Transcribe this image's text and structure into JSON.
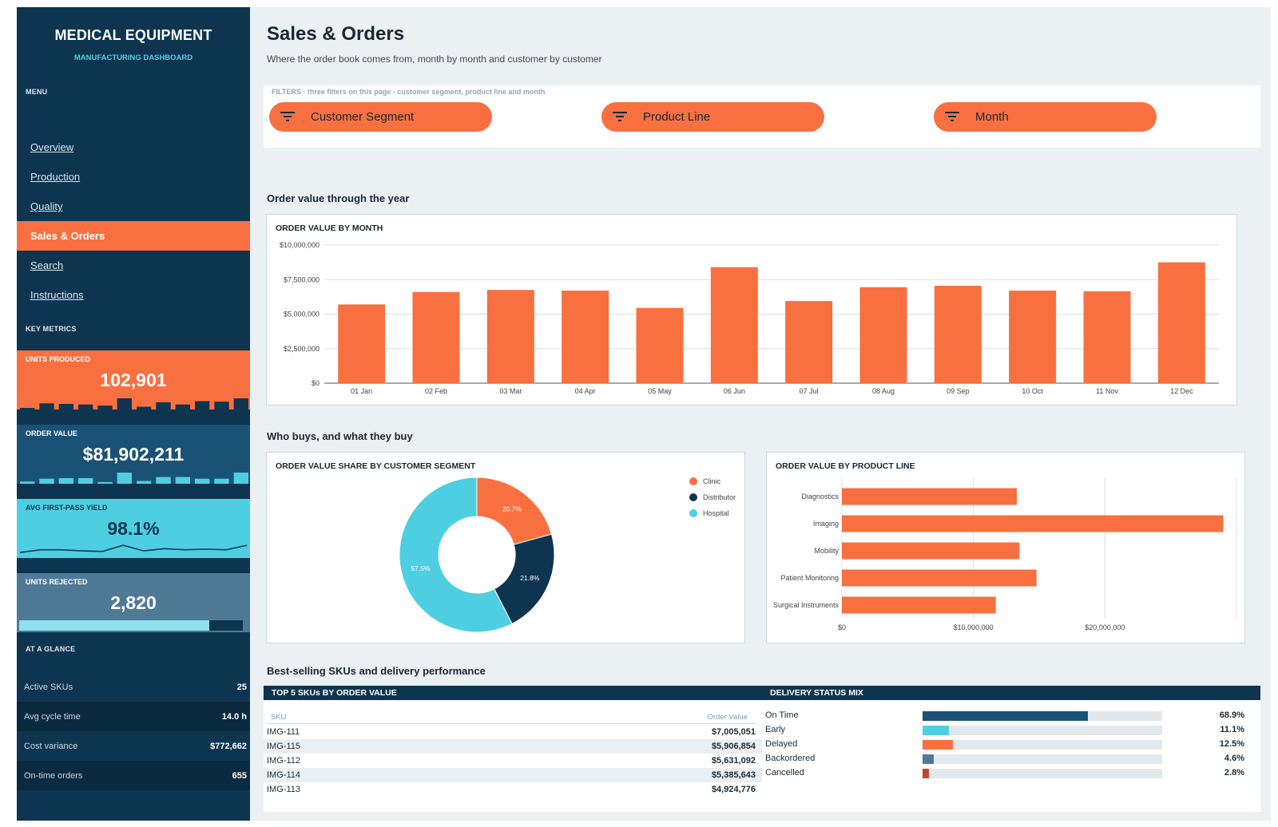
{
  "sidebar": {
    "title": "MEDICAL EQUIPMENT",
    "subtitle": "MANUFACTURING DASHBOARD",
    "menu_label": "MENU",
    "nav": [
      "Overview",
      "Production",
      "Quality",
      "Sales & Orders",
      "Search",
      "Instructions"
    ],
    "active_nav": "Sales & Orders",
    "key_metrics_label": "KEY METRICS",
    "kpis": [
      {
        "label": "UNITS PRODUCED",
        "value": "102,901",
        "bg": "#f87040",
        "spark_color": "#0e3550",
        "spark_type": "bar",
        "spark": [
          0.1,
          0.55,
          0.5,
          0.45,
          0.35,
          1.0,
          0.25,
          0.65,
          0.45,
          0.75,
          0.7,
          1.0
        ]
      },
      {
        "label": "ORDER VALUE",
        "value": "$81,902,211",
        "bg": "#1a5276",
        "spark_color": "#4ecfe1",
        "spark_type": "bar",
        "spark": [
          0.2,
          0.45,
          0.5,
          0.5,
          0.15,
          1.0,
          0.25,
          0.6,
          0.6,
          0.45,
          0.45,
          1.0
        ]
      },
      {
        "label": "AVG FIRST-PASS YIELD",
        "value": "98.1%",
        "bg": "#4ecfe1",
        "spark_color": "#0e3550",
        "spark_type": "line",
        "spark": [
          0.2,
          0.45,
          0.45,
          0.35,
          0.3,
          0.85,
          0.35,
          0.55,
          0.45,
          0.5,
          0.45,
          0.85
        ]
      },
      {
        "label": "UNITS REJECTED",
        "value": "2,820",
        "bg": "#4f7a96",
        "spark_color": "#8ee0ee",
        "spark_type": "progress",
        "progress": 0.85
      }
    ],
    "glance_label": "AT A GLANCE",
    "glance": [
      {
        "label": "Active SKUs",
        "value": "25"
      },
      {
        "label": "Avg cycle time",
        "value": "14.0 h"
      },
      {
        "label": "Cost variance",
        "value": "$772,662"
      },
      {
        "label": "On-time orders",
        "value": "655"
      }
    ]
  },
  "header": {
    "title": "Sales & Orders",
    "subtitle": "Where the order book comes from, month by month and customer by customer"
  },
  "filters": {
    "note": "FILTERS · three filters on this page - customer segment, product line and month",
    "items": [
      "Customer Segment",
      "Product Line",
      "Month"
    ]
  },
  "sections": {
    "year": "Order value through the year",
    "who": "Who buys, and what they buy",
    "skus": "Best-selling SKUs and delivery performance"
  },
  "chart_data": [
    {
      "type": "bar",
      "title": "ORDER VALUE BY MONTH",
      "categories": [
        "01 Jan",
        "02 Feb",
        "03 Mar",
        "04 Apr",
        "05 May",
        "06 Jun",
        "07 Jul",
        "08 Aug",
        "09 Sep",
        "10 Oct",
        "11 Nov",
        "12 Dec"
      ],
      "values": [
        5700000,
        6600000,
        6750000,
        6700000,
        5450000,
        8400000,
        5950000,
        6950000,
        7050000,
        6700000,
        6650000,
        8750000
      ],
      "ylim": [
        0,
        10000000
      ],
      "yticks": [
        "$0",
        "$2,500,000",
        "$5,000,000",
        "$7,500,000",
        "$10,000,000"
      ],
      "grid": true,
      "color": "#f87040"
    },
    {
      "type": "pie",
      "title": "ORDER VALUE SHARE BY CUSTOMER SEGMENT",
      "labels": [
        "Clinic",
        "Distributor",
        "Hospital"
      ],
      "values": [
        20.7,
        21.8,
        57.5
      ],
      "data_labels": [
        "20.7%",
        "21.8%",
        "57.5%"
      ],
      "colors": [
        "#f87040",
        "#0e3550",
        "#4ecfe1"
      ],
      "legend": "top-right"
    },
    {
      "type": "bar",
      "orientation": "horizontal",
      "title": "ORDER VALUE BY PRODUCT LINE",
      "categories": [
        "Diagnostics",
        "Imaging",
        "Mobility",
        "Patient Monitoring",
        "Surgical Instruments"
      ],
      "values": [
        13300000,
        29000000,
        13500000,
        14800000,
        11700000
      ],
      "xlim": [
        0,
        30000000
      ],
      "xticks": [
        "$0",
        "$10,000,000",
        "$20,000,000"
      ],
      "grid": true,
      "color": "#f87040"
    }
  ],
  "top_skus": {
    "title": "TOP 5 SKUs BY ORDER VALUE",
    "col_sku": "SKU",
    "col_value": "Order Value",
    "rows": [
      {
        "sku": "IMG-111",
        "value": "$7,005,051"
      },
      {
        "sku": "IMG-115",
        "value": "$5,906,854"
      },
      {
        "sku": "IMG-112",
        "value": "$5,631,092"
      },
      {
        "sku": "IMG-114",
        "value": "$5,385,643"
      },
      {
        "sku": "IMG-113",
        "value": "$4,924,776"
      }
    ]
  },
  "delivery": {
    "title": "DELIVERY STATUS MIX",
    "rows": [
      {
        "label": "On Time",
        "pct": "68.9%",
        "share": 0.689,
        "color": "#1a5276"
      },
      {
        "label": "Early",
        "pct": "11.1%",
        "share": 0.111,
        "color": "#4ecfe1"
      },
      {
        "label": "Delayed",
        "pct": "12.5%",
        "share": 0.125,
        "color": "#f87040"
      },
      {
        "label": "Backordered",
        "pct": "4.6%",
        "share": 0.046,
        "color": "#4f7a96"
      },
      {
        "label": "Cancelled",
        "pct": "2.8%",
        "share": 0.028,
        "color": "#c0472c"
      }
    ]
  }
}
